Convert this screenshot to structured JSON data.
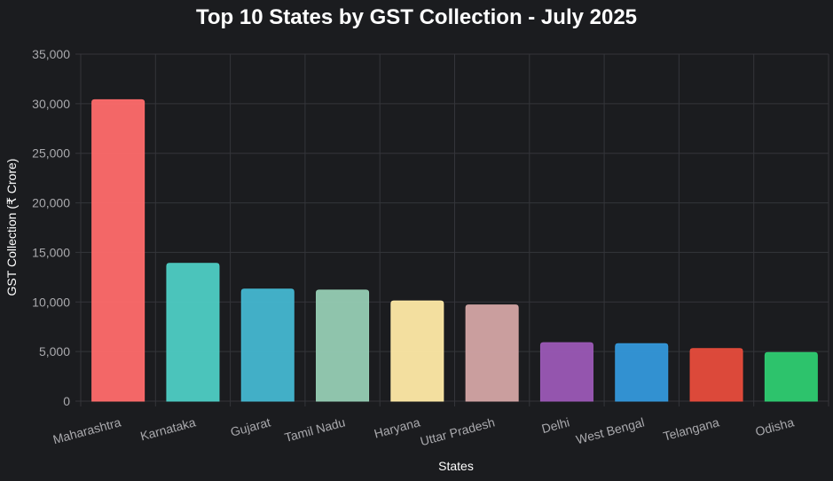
{
  "chart_data": {
    "type": "bar",
    "title": "Top 10 States by GST Collection - July 2025",
    "xlabel": "States",
    "ylabel": "GST Collection (₹ Crore)",
    "ylim": [
      0,
      35000
    ],
    "yticks": [
      0,
      5000,
      10000,
      15000,
      20000,
      25000,
      30000,
      35000
    ],
    "ytick_labels": [
      "0",
      "5,000",
      "10,000",
      "15,000",
      "20,000",
      "25,000",
      "30,000",
      "35,000"
    ],
    "grid": true,
    "legend": "none",
    "categories": [
      "Maharashtra",
      "Karnataka",
      "Gujarat",
      "Tamil Nadu",
      "Haryana",
      "Uttar Pradesh",
      "Delhi",
      "West Bengal",
      "Telangana",
      "Odisha"
    ],
    "values": [
      30400,
      13900,
      11300,
      11200,
      10100,
      9700,
      5900,
      5800,
      5300,
      4900
    ],
    "colors": [
      "#ff6b6b",
      "#4ecdc4",
      "#45b7d1",
      "#96ceb4",
      "#ffeaa7",
      "#d4a5a5",
      "#9b59b6",
      "#3498db",
      "#e74c3c",
      "#2ecc71"
    ]
  }
}
